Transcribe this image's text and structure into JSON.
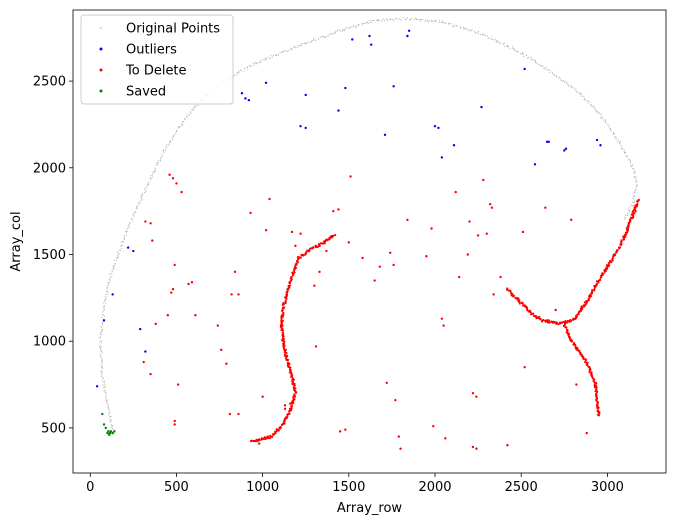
{
  "chart_data": {
    "type": "scatter",
    "title": "",
    "xlabel": "Array_row",
    "ylabel": "Array_col",
    "xlim": [
      -100,
      3340
    ],
    "ylim": [
      240,
      2910
    ],
    "xticks": [
      0,
      500,
      1000,
      1500,
      2000,
      2500,
      3000
    ],
    "yticks": [
      500,
      1000,
      1500,
      2000,
      2500
    ],
    "grid": false,
    "legend_position": "top-left",
    "series": [
      {
        "name": "Original Points",
        "color": "#b0b0b0",
        "marker": "tiny-dot",
        "shape": "boundary-curve",
        "anchors": [
          [
            130,
            480
          ],
          [
            100,
            640
          ],
          [
            70,
            800
          ],
          [
            60,
            1000
          ],
          [
            80,
            1200
          ],
          [
            110,
            1350
          ],
          [
            160,
            1500
          ],
          [
            240,
            1700
          ],
          [
            330,
            1900
          ],
          [
            430,
            2100
          ],
          [
            540,
            2270
          ],
          [
            650,
            2400
          ],
          [
            780,
            2500
          ],
          [
            950,
            2600
          ],
          [
            1200,
            2700
          ],
          [
            1450,
            2790
          ],
          [
            1650,
            2850
          ],
          [
            1850,
            2860
          ],
          [
            2050,
            2840
          ],
          [
            2250,
            2780
          ],
          [
            2450,
            2690
          ],
          [
            2650,
            2570
          ],
          [
            2850,
            2420
          ],
          [
            2980,
            2280
          ],
          [
            3080,
            2130
          ],
          [
            3150,
            2000
          ],
          [
            3170,
            1900
          ],
          [
            3150,
            1800
          ],
          [
            3100,
            1700
          ]
        ]
      },
      {
        "name": "Outliers",
        "color": "#0000ff",
        "marker": "dot",
        "values": [
          [
            40,
            740
          ],
          [
            80,
            1120
          ],
          [
            130,
            1270
          ],
          [
            220,
            1540
          ],
          [
            250,
            1520
          ],
          [
            290,
            1070
          ],
          [
            320,
            940
          ],
          [
            880,
            2430
          ],
          [
            900,
            2400
          ],
          [
            920,
            2390
          ],
          [
            1020,
            2490
          ],
          [
            1220,
            2240
          ],
          [
            1250,
            2230
          ],
          [
            1250,
            2420
          ],
          [
            1440,
            2330
          ],
          [
            1480,
            2460
          ],
          [
            1520,
            2740
          ],
          [
            1620,
            2760
          ],
          [
            1630,
            2710
          ],
          [
            1710,
            2190
          ],
          [
            1760,
            2470
          ],
          [
            1840,
            2760
          ],
          [
            1850,
            2790
          ],
          [
            2000,
            2240
          ],
          [
            2020,
            2230
          ],
          [
            2040,
            2060
          ],
          [
            2110,
            2130
          ],
          [
            2270,
            2350
          ],
          [
            2520,
            2570
          ],
          [
            2580,
            2020
          ],
          [
            2650,
            2150
          ],
          [
            2660,
            2150
          ],
          [
            2750,
            2100
          ],
          [
            2760,
            2110
          ],
          [
            2940,
            2160
          ],
          [
            2960,
            2130
          ]
        ]
      },
      {
        "name": "To Delete",
        "color": "#ff0000",
        "marker": "dot",
        "curves": [
          [
            [
              930,
              420
            ],
            [
              1050,
              450
            ],
            [
              1120,
              520
            ],
            [
              1160,
              600
            ],
            [
              1190,
              700
            ],
            [
              1170,
              800
            ],
            [
              1140,
              900
            ],
            [
              1120,
              1000
            ],
            [
              1110,
              1100
            ],
            [
              1120,
              1200
            ],
            [
              1150,
              1300
            ],
            [
              1180,
              1400
            ],
            [
              1210,
              1480
            ],
            [
              1280,
              1530
            ],
            [
              1360,
              1570
            ],
            [
              1420,
              1620
            ]
          ],
          [
            [
              2420,
              1300
            ],
            [
              2490,
              1230
            ],
            [
              2560,
              1160
            ],
            [
              2620,
              1120
            ],
            [
              2720,
              1100
            ],
            [
              2800,
              1120
            ],
            [
              2880,
              1230
            ],
            [
              2950,
              1350
            ],
            [
              3020,
              1460
            ],
            [
              3080,
              1560
            ],
            [
              3120,
              1660
            ],
            [
              3160,
              1760
            ],
            [
              3180,
              1820
            ]
          ],
          [
            [
              2750,
              1100
            ],
            [
              2780,
              1020
            ],
            [
              2820,
              960
            ],
            [
              2880,
              880
            ],
            [
              2930,
              760
            ],
            [
              2940,
              660
            ],
            [
              2950,
              570
            ]
          ]
        ],
        "values": [
          [
            320,
            1690
          ],
          [
            350,
            1680
          ],
          [
            360,
            1580
          ],
          [
            460,
            1960
          ],
          [
            480,
            1940
          ],
          [
            490,
            1440
          ],
          [
            500,
            1910
          ],
          [
            530,
            1860
          ],
          [
            480,
            1300
          ],
          [
            470,
            1280
          ],
          [
            450,
            1150
          ],
          [
            570,
            1330
          ],
          [
            610,
            1150
          ],
          [
            590,
            1340
          ],
          [
            740,
            1090
          ],
          [
            760,
            950
          ],
          [
            790,
            870
          ],
          [
            820,
            1270
          ],
          [
            840,
            1400
          ],
          [
            860,
            580
          ],
          [
            860,
            1270
          ],
          [
            930,
            1740
          ],
          [
            1020,
            1640
          ],
          [
            1040,
            1820
          ],
          [
            1000,
            680
          ],
          [
            1220,
            1620
          ],
          [
            1170,
            1630
          ],
          [
            1300,
            1320
          ],
          [
            1330,
            1400
          ],
          [
            1310,
            970
          ],
          [
            1410,
            1750
          ],
          [
            1440,
            1760
          ],
          [
            1500,
            1570
          ],
          [
            1510,
            1950
          ],
          [
            1580,
            1480
          ],
          [
            1650,
            1350
          ],
          [
            1680,
            1430
          ],
          [
            1740,
            1510
          ],
          [
            1760,
            1440
          ],
          [
            1840,
            1700
          ],
          [
            1950,
            1490
          ],
          [
            1980,
            1650
          ],
          [
            2040,
            1130
          ],
          [
            2050,
            1090
          ],
          [
            2120,
            1860
          ],
          [
            2140,
            1370
          ],
          [
            2190,
            1500
          ],
          [
            2200,
            1690
          ],
          [
            2250,
            1610
          ],
          [
            2280,
            1930
          ],
          [
            2300,
            1620
          ],
          [
            2330,
            1770
          ],
          [
            2320,
            1790
          ],
          [
            2340,
            1270
          ],
          [
            2380,
            1370
          ],
          [
            2510,
            1630
          ],
          [
            2520,
            850
          ],
          [
            2640,
            1770
          ],
          [
            2660,
            1120
          ],
          [
            2700,
            1180
          ],
          [
            2790,
            1700
          ],
          [
            2820,
            750
          ],
          [
            2880,
            470
          ],
          [
            1370,
            1520
          ],
          [
            1450,
            480
          ],
          [
            1480,
            490
          ],
          [
            1720,
            760
          ],
          [
            1770,
            660
          ],
          [
            1790,
            450
          ],
          [
            1800,
            380
          ],
          [
            1990,
            510
          ],
          [
            2220,
            700
          ],
          [
            2240,
            680
          ],
          [
            2220,
            390
          ],
          [
            2240,
            380
          ],
          [
            2060,
            440
          ],
          [
            2420,
            400
          ],
          [
            510,
            750
          ],
          [
            490,
            520
          ],
          [
            490,
            540
          ],
          [
            810,
            580
          ],
          [
            380,
            1100
          ],
          [
            310,
            880
          ],
          [
            350,
            810
          ],
          [
            980,
            410
          ],
          [
            1030,
            450
          ],
          [
            1130,
            630
          ],
          [
            1130,
            610
          ],
          [
            1160,
            640
          ],
          [
            1190,
            1550
          ]
        ]
      },
      {
        "name": "Saved",
        "color": "#008000",
        "marker": "dot",
        "values": [
          [
            70,
            580
          ],
          [
            80,
            520
          ],
          [
            90,
            500
          ],
          [
            100,
            470
          ],
          [
            110,
            460
          ],
          [
            120,
            480
          ],
          [
            130,
            470
          ],
          [
            140,
            480
          ],
          [
            115,
            470
          ],
          [
            105,
            480
          ]
        ]
      }
    ]
  }
}
